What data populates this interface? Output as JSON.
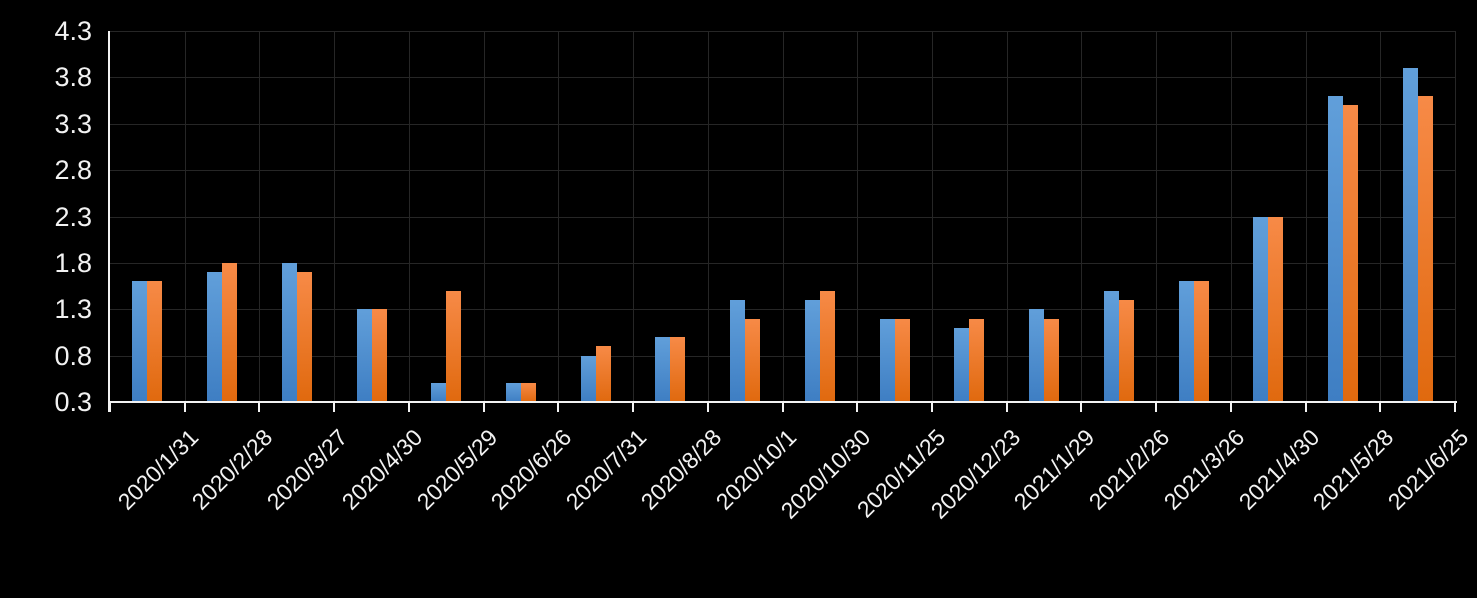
{
  "chart_data": {
    "type": "bar",
    "title": "",
    "categories": [
      "2020/1/31",
      "2020/2/28",
      "2020/3/27",
      "2020/4/30",
      "2020/5/29",
      "2020/6/26",
      "2020/7/31",
      "2020/8/28",
      "2020/10/1",
      "2020/10/30",
      "2020/11/25",
      "2020/12/23",
      "2021/1/29",
      "2021/2/26",
      "2021/3/26",
      "2021/4/30",
      "2021/5/28",
      "2021/6/25"
    ],
    "series": [
      {
        "name": "blue-series",
        "values": [
          1.6,
          1.7,
          1.8,
          1.3,
          0.5,
          0.5,
          0.8,
          1.0,
          1.4,
          1.4,
          1.2,
          1.1,
          1.3,
          1.5,
          1.6,
          2.3,
          3.6,
          3.9
        ],
        "color_top": "#619fda",
        "color_bottom": "#3e7ec3"
      },
      {
        "name": "orange-series",
        "values": [
          1.6,
          1.8,
          1.7,
          1.3,
          1.5,
          0.5,
          0.9,
          1.0,
          1.2,
          1.5,
          1.2,
          1.2,
          1.2,
          1.4,
          1.6,
          2.3,
          3.5,
          3.6
        ],
        "color_top": "#f78a47",
        "color_bottom": "#e0690e"
      }
    ],
    "xlabel": "",
    "ylabel": "",
    "ylim": [
      0.3,
      4.3
    ],
    "yticks": [
      0.3,
      0.8,
      1.3,
      1.8,
      2.3,
      2.8,
      3.3,
      3.8,
      4.3
    ],
    "ytick_labels": [
      "0.3",
      "0.8",
      "1.3",
      "1.8",
      "2.3",
      "2.8",
      "3.3",
      "3.8",
      "4.3"
    ],
    "xtick_rotation": 45,
    "grid": true,
    "legend": "none",
    "colors": {
      "background": "#000000",
      "gridline": "#262626",
      "axis": "#f2f2f2",
      "text": "#f2f2f2"
    }
  }
}
